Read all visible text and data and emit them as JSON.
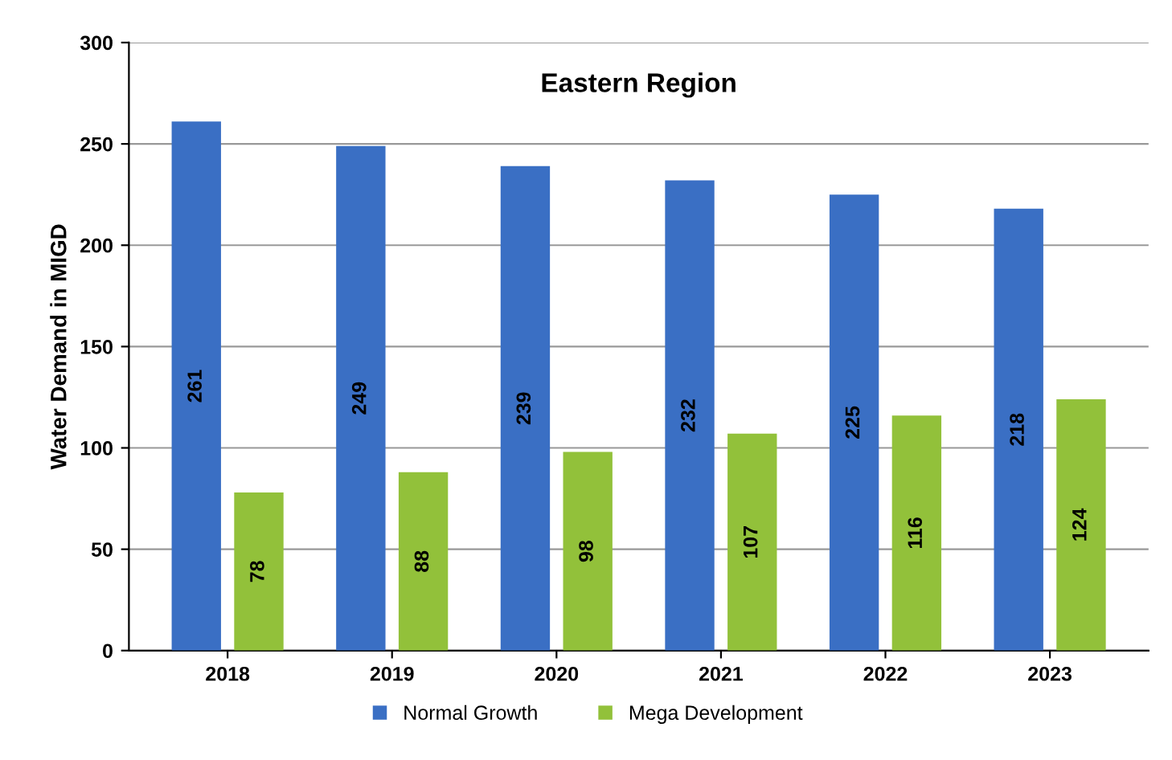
{
  "chart_data": {
    "type": "bar",
    "title": "Eastern Region",
    "ylabel": "Water Demand in MIGD",
    "categories": [
      "2018",
      "2019",
      "2020",
      "2021",
      "2022",
      "2023"
    ],
    "series": [
      {
        "name": "Normal Growth",
        "color": "#3a6fc4",
        "values": [
          261,
          249,
          239,
          232,
          225,
          218
        ]
      },
      {
        "name": "Mega Development",
        "color": "#92c13a",
        "values": [
          78,
          88,
          98,
          107,
          116,
          124
        ]
      }
    ],
    "ylim": [
      0,
      300
    ],
    "yticks": [
      0,
      50,
      100,
      150,
      200,
      250,
      300
    ],
    "grid": "y",
    "legend": "bottom",
    "data_labels": true
  }
}
